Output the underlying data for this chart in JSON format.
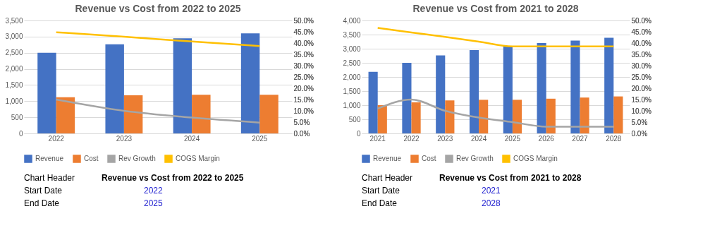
{
  "chart_data": [
    {
      "type": "bar",
      "title": "Revenue vs Cost from 2022 to 2025",
      "categories": [
        "2022",
        "2023",
        "2024",
        "2025"
      ],
      "series": [
        {
          "name": "Revenue",
          "color": "#4472c4",
          "values": [
            2500,
            2760,
            2950,
            3100
          ]
        },
        {
          "name": "Cost",
          "color": "#ed7d31",
          "values": [
            1120,
            1180,
            1200,
            1200
          ]
        },
        {
          "name": "Rev Growth",
          "color": "#a5a5a5",
          "type": "line",
          "axis": "y2",
          "values": [
            15.0,
            10.0,
            7.0,
            4.8
          ]
        },
        {
          "name": "COGS Margin",
          "color": "#ffc000",
          "type": "line",
          "axis": "y2",
          "values": [
            44.8,
            42.8,
            40.7,
            38.7
          ]
        }
      ],
      "ylim": [
        0,
        3500
      ],
      "yticks": [
        0,
        500,
        {
          "value": 1000,
          "label": "1,000"
        },
        {
          "value": 1500,
          "label": "1,500"
        },
        {
          "value": 2000,
          "label": "2,000"
        },
        {
          "value": 2500,
          "label": "2,500"
        },
        {
          "value": 3000,
          "label": "3,000"
        },
        {
          "value": 3500,
          "label": "3,500"
        }
      ],
      "y2lim": [
        0,
        50
      ],
      "y2ticks": [
        {
          "value": 0,
          "label": "0.0%"
        },
        {
          "value": 5,
          "label": "5.0%"
        },
        {
          "value": 10,
          "label": "10.0%"
        },
        {
          "value": 15,
          "label": "15.0%"
        },
        {
          "value": 20,
          "label": "20.0%"
        },
        {
          "value": 25,
          "label": "25.0%"
        },
        {
          "value": 30,
          "label": "30.0%"
        },
        {
          "value": 35,
          "label": "35.0%"
        },
        {
          "value": 40,
          "label": "40.0%"
        },
        {
          "value": 45,
          "label": "45.0%"
        },
        {
          "value": 50,
          "label": "50.0%"
        }
      ],
      "grid": "y",
      "legend": "bottom",
      "annotations": [
        "Chart Header",
        "Revenue vs Cost from 2022 to 2025",
        "Start Date",
        "2022",
        "End Date",
        "2025"
      ]
    },
    {
      "type": "bar",
      "title": "Revenue vs Cost from 2021 to 2028",
      "categories": [
        "2021",
        "2022",
        "2023",
        "2024",
        "2025",
        "2026",
        "2027",
        "2028"
      ],
      "series": [
        {
          "name": "Revenue",
          "color": "#4472c4",
          "values": [
            2180,
            2500,
            2760,
            2950,
            3100,
            3200,
            3290,
            3390
          ]
        },
        {
          "name": "Cost",
          "color": "#ed7d31",
          "values": [
            1000,
            1100,
            1170,
            1190,
            1190,
            1230,
            1270,
            1310
          ]
        },
        {
          "name": "Rev Growth",
          "color": "#a5a5a5",
          "type": "line",
          "axis": "y2",
          "values": [
            11.0,
            15.0,
            10.0,
            7.0,
            5.0,
            3.0,
            3.0,
            3.0
          ]
        },
        {
          "name": "COGS Margin",
          "color": "#ffc000",
          "type": "line",
          "axis": "y2",
          "values": [
            46.7,
            44.7,
            42.7,
            40.6,
            38.5,
            38.5,
            38.5,
            38.5
          ]
        }
      ],
      "ylim": [
        0,
        4000
      ],
      "yticks": [
        0,
        500,
        {
          "value": 1000,
          "label": "1,000"
        },
        {
          "value": 1500,
          "label": "1,500"
        },
        {
          "value": 2000,
          "label": "2,000"
        },
        {
          "value": 2500,
          "label": "2,500"
        },
        {
          "value": 3000,
          "label": "3,000"
        },
        {
          "value": 3500,
          "label": "3,500"
        },
        {
          "value": 4000,
          "label": "4,000"
        }
      ],
      "y2lim": [
        0,
        50
      ],
      "y2ticks": [
        {
          "value": 0,
          "label": "0.0%"
        },
        {
          "value": 5,
          "label": "5.0%"
        },
        {
          "value": 10,
          "label": "10.0%"
        },
        {
          "value": 15,
          "label": "15.0%"
        },
        {
          "value": 20,
          "label": "20.0%"
        },
        {
          "value": 25,
          "label": "25.0%"
        },
        {
          "value": 30,
          "label": "30.0%"
        },
        {
          "value": 35,
          "label": "35.0%"
        },
        {
          "value": 40,
          "label": "40.0%"
        },
        {
          "value": 45,
          "label": "45.0%"
        },
        {
          "value": 50,
          "label": "50.0%"
        }
      ],
      "grid": "y",
      "legend": "bottom",
      "annotations": [
        "Chart Header",
        "Revenue vs Cost from 2021 to 2028",
        "Start Date",
        "2021",
        "End Date",
        "2028"
      ]
    }
  ]
}
